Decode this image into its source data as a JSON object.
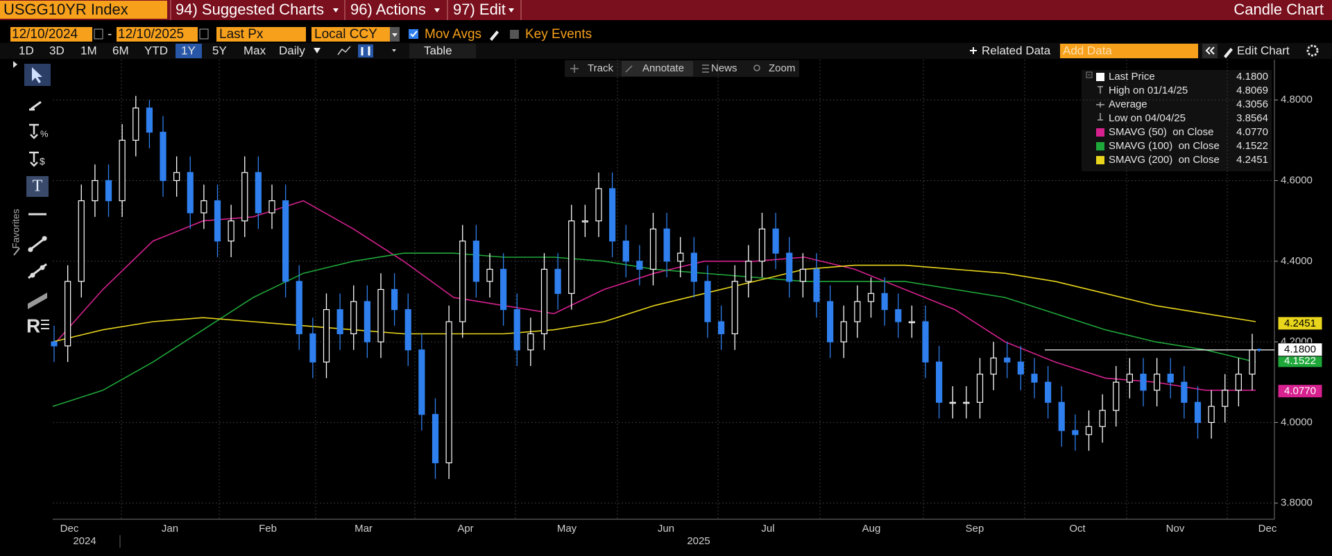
{
  "toolbar": {
    "security": "USGG10YR Index",
    "menus": [
      "94) Suggested Charts",
      "96) Actions",
      "97) Edit"
    ],
    "chart_kind": "Candle Chart"
  },
  "controls": {
    "start_date": "12/10/2024",
    "separator": "-",
    "end_date": "12/10/2025",
    "field": "Last Px",
    "currency": "Local CCY",
    "options": [
      "Mov Avgs",
      "Key Events"
    ]
  },
  "ranges": [
    "1D",
    "3D",
    "1M",
    "6M",
    "YTD",
    "1Y",
    "5Y",
    "Max"
  ],
  "frequency": "Daily",
  "table": "Table",
  "related": "Related Data",
  "add_data": "Add Data",
  "edit_chart": "Edit Chart",
  "chart_tools": [
    "Track",
    "Annotate",
    "News",
    "Zoom"
  ],
  "favorites": "Favorites",
  "chart_data": {
    "type": "candlestick",
    "up_color": "#ffffff",
    "down_color": "#2f80ee",
    "open": [
      4.2,
      4.19,
      4.35,
      4.55,
      4.6,
      4.55,
      4.7,
      4.78,
      4.72,
      4.6,
      4.62,
      4.52,
      4.55,
      4.45,
      4.5,
      4.62,
      4.52,
      4.55,
      4.35,
      4.22,
      4.15,
      4.28,
      4.22,
      4.3,
      4.2,
      4.33,
      4.28,
      4.18,
      4.02,
      3.9,
      4.25,
      4.45,
      4.35,
      4.38,
      4.28,
      4.18,
      4.22,
      4.38,
      4.32,
      4.5,
      4.5,
      4.58,
      4.45,
      4.4,
      4.38,
      4.48,
      4.4,
      4.42,
      4.35,
      4.25,
      4.22,
      4.35,
      4.4,
      4.48,
      4.42,
      4.35,
      4.38,
      4.3,
      4.2,
      4.25,
      4.3,
      4.32,
      4.28,
      4.25,
      4.25,
      4.15,
      4.05,
      4.05,
      4.05,
      4.12,
      4.16,
      4.15,
      4.12,
      4.1,
      4.05,
      3.98,
      3.97,
      3.99,
      4.03,
      4.1,
      4.12,
      4.08,
      4.12,
      4.1,
      4.05,
      4.0,
      4.04,
      4.08,
      4.12
    ],
    "high": [
      4.24,
      4.39,
      4.59,
      4.64,
      4.64,
      4.74,
      4.81,
      4.8,
      4.76,
      4.66,
      4.66,
      4.59,
      4.59,
      4.54,
      4.66,
      4.66,
      4.59,
      4.59,
      4.39,
      4.26,
      4.32,
      4.32,
      4.34,
      4.34,
      4.37,
      4.37,
      4.32,
      4.22,
      4.06,
      4.29,
      4.49,
      4.49,
      4.42,
      4.42,
      4.32,
      4.26,
      4.42,
      4.42,
      4.54,
      4.54,
      4.62,
      4.62,
      4.49,
      4.44,
      4.52,
      4.52,
      4.46,
      4.46,
      4.39,
      4.29,
      4.39,
      4.44,
      4.52,
      4.52,
      4.46,
      4.42,
      4.42,
      4.34,
      4.29,
      4.34,
      4.36,
      4.36,
      4.32,
      4.29,
      4.29,
      4.19,
      4.09,
      4.09,
      4.16,
      4.2,
      4.2,
      4.19,
      4.16,
      4.14,
      4.09,
      4.02,
      4.03,
      4.07,
      4.14,
      4.16,
      4.16,
      4.16,
      4.16,
      4.14,
      4.09,
      4.08,
      4.12,
      4.16,
      4.22
    ],
    "low": [
      4.15,
      4.15,
      4.31,
      4.51,
      4.51,
      4.51,
      4.66,
      4.68,
      4.56,
      4.56,
      4.48,
      4.48,
      4.41,
      4.41,
      4.46,
      4.48,
      4.48,
      4.31,
      4.18,
      4.11,
      4.11,
      4.18,
      4.18,
      4.16,
      4.16,
      4.24,
      4.14,
      3.98,
      3.86,
      3.86,
      4.21,
      4.31,
      4.31,
      4.24,
      4.14,
      4.14,
      4.18,
      4.28,
      4.28,
      4.46,
      4.46,
      4.41,
      4.36,
      4.34,
      4.34,
      4.36,
      4.36,
      4.31,
      4.21,
      4.18,
      4.18,
      4.31,
      4.36,
      4.38,
      4.31,
      4.31,
      4.26,
      4.16,
      4.16,
      4.21,
      4.26,
      4.24,
      4.21,
      4.21,
      4.11,
      4.01,
      4.01,
      4.01,
      4.01,
      4.08,
      4.11,
      4.08,
      4.06,
      4.01,
      3.94,
      3.93,
      3.93,
      3.95,
      3.99,
      4.06,
      4.04,
      4.04,
      4.06,
      4.01,
      3.96,
      3.96,
      4.0,
      4.04,
      4.08
    ],
    "close": [
      4.19,
      4.35,
      4.55,
      4.6,
      4.55,
      4.7,
      4.78,
      4.72,
      4.6,
      4.62,
      4.52,
      4.55,
      4.45,
      4.5,
      4.62,
      4.52,
      4.55,
      4.35,
      4.22,
      4.15,
      4.28,
      4.22,
      4.3,
      4.2,
      4.33,
      4.28,
      4.18,
      4.02,
      3.9,
      4.25,
      4.45,
      4.35,
      4.38,
      4.28,
      4.18,
      4.22,
      4.38,
      4.32,
      4.5,
      4.5,
      4.58,
      4.45,
      4.4,
      4.38,
      4.48,
      4.4,
      4.42,
      4.35,
      4.25,
      4.22,
      4.35,
      4.4,
      4.48,
      4.42,
      4.35,
      4.38,
      4.3,
      4.2,
      4.25,
      4.3,
      4.32,
      4.28,
      4.25,
      4.25,
      4.15,
      4.05,
      4.05,
      4.05,
      4.12,
      4.16,
      4.15,
      4.12,
      4.1,
      4.05,
      3.98,
      3.97,
      3.99,
      4.03,
      4.1,
      4.12,
      4.08,
      4.12,
      4.1,
      4.05,
      4.0,
      4.04,
      4.08,
      4.12,
      4.18
    ],
    "moving_averages": [
      {
        "name": "SMAVG (50)  on Close",
        "color": "#d6218f",
        "values": [
          4.19,
          4.33,
          4.45,
          4.5,
          4.51,
          4.55,
          4.48,
          4.4,
          4.31,
          4.29,
          4.27,
          4.33,
          4.37,
          4.4,
          4.4,
          4.41,
          4.38,
          4.33,
          4.28,
          4.2,
          4.15,
          4.11,
          4.1,
          4.08,
          4.08
        ],
        "last": {
          "value": 4.077,
          "label": "4.0770"
        }
      },
      {
        "name": "SMAVG (100)  on Close",
        "color": "#1fa83a",
        "values": [
          4.04,
          4.08,
          4.15,
          4.23,
          4.31,
          4.37,
          4.4,
          4.42,
          4.42,
          4.41,
          4.41,
          4.4,
          4.38,
          4.37,
          4.36,
          4.35,
          4.35,
          4.35,
          4.33,
          4.31,
          4.27,
          4.23,
          4.2,
          4.18,
          4.15
        ],
        "last": {
          "value": 4.1522,
          "label": "4.1522"
        }
      },
      {
        "name": "SMAVG (200)  on Close",
        "color": "#e8d51c",
        "values": [
          4.2,
          4.23,
          4.25,
          4.26,
          4.25,
          4.24,
          4.23,
          4.22,
          4.22,
          4.22,
          4.23,
          4.25,
          4.29,
          4.32,
          4.35,
          4.38,
          4.39,
          4.39,
          4.38,
          4.37,
          4.35,
          4.32,
          4.29,
          4.27,
          4.25
        ],
        "last": {
          "value": 4.2451,
          "label": "4.2451"
        }
      }
    ],
    "last_price": {
      "name": "Last Price",
      "value": 4.18,
      "label": "4.1800"
    },
    "stats": [
      {
        "label": "High on 01/14/25",
        "value": "4.8069"
      },
      {
        "label": "Average",
        "value": "4.3056"
      },
      {
        "label": "Low on 04/04/25",
        "value": "3.8564"
      }
    ],
    "ylim": [
      3.76,
      4.9
    ],
    "yticks": [
      {
        "value": 3.8,
        "label": "3.8000"
      },
      {
        "value": 4.0,
        "label": "4.0000"
      },
      {
        "value": 4.2,
        "label": "4.2000"
      },
      {
        "value": 4.4,
        "label": "4.4000"
      },
      {
        "value": 4.6,
        "label": "4.6000"
      },
      {
        "value": 4.8,
        "label": "4.8000"
      }
    ],
    "grid": true,
    "months": [
      "Dec",
      "Jan",
      "Feb",
      "Mar",
      "Apr",
      "May",
      "Jun",
      "Jul",
      "Aug",
      "Sep",
      "Oct",
      "Nov",
      "Dec"
    ],
    "years": [
      "2024",
      "2025"
    ]
  }
}
